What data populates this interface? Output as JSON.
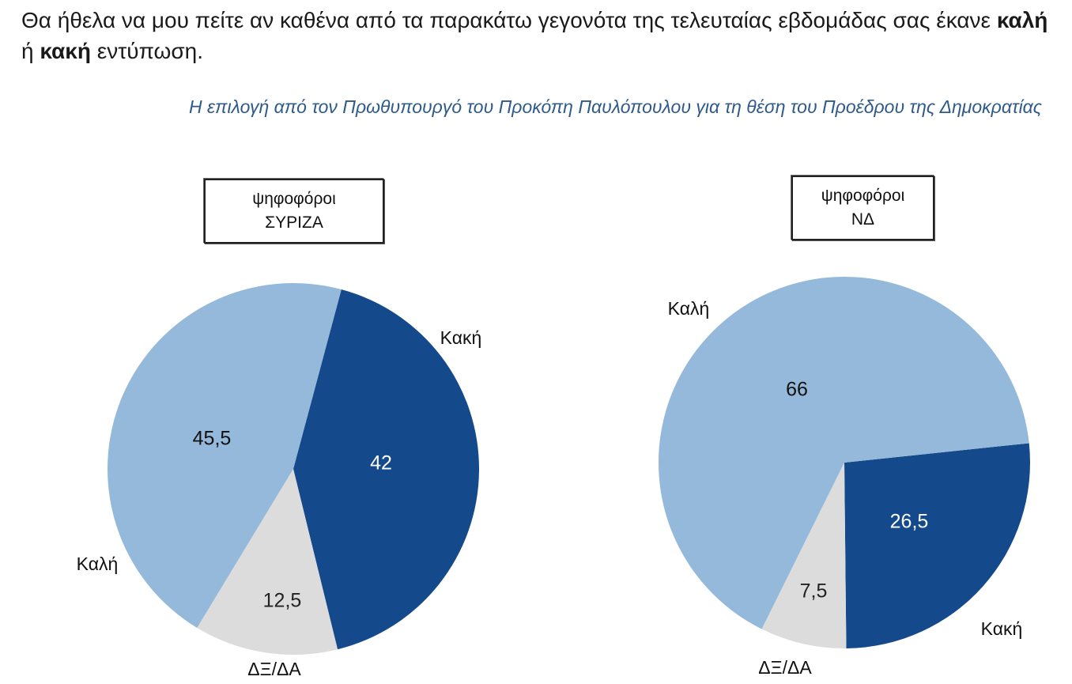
{
  "question": {
    "part1": "Θα ήθελα να μου πείτε αν καθένα από τα παρακάτω γεγονότα της τελευταίας εβδομάδας σας έκανε ",
    "bold1": "καλή",
    "part2": " ή ",
    "bold2": "κακή",
    "part3": " εντύπωση."
  },
  "subtitle": "Η επιλογή από τον Πρωθυπουργό του Προκόπη Παυλόπουλου για τη θέση του Προέδρου της Δημοκρατίας",
  "colors": {
    "good": "#95b9da",
    "bad": "#144a8b",
    "dk": "#dcdcdc"
  },
  "chart_data": [
    {
      "type": "pie",
      "title_line1": "ψηφοφόροι",
      "title_line2": "ΣΥΡΙΖΑ",
      "slices": [
        {
          "label": "Κακή",
          "value": 42,
          "value_text": "42",
          "color_key": "bad"
        },
        {
          "label": "ΔΞ/ΔΑ",
          "value": 12.5,
          "value_text": "12,5",
          "color_key": "dk"
        },
        {
          "label": "Καλή",
          "value": 45.5,
          "value_text": "45,5",
          "color_key": "good"
        }
      ]
    },
    {
      "type": "pie",
      "title_line1": "ψηφοφόροι",
      "title_line2": "ΝΔ",
      "slices": [
        {
          "label": "Κακή",
          "value": 26.5,
          "value_text": "26,5",
          "color_key": "bad"
        },
        {
          "label": "ΔΞ/ΔΑ",
          "value": 7.5,
          "value_text": "7,5",
          "color_key": "dk"
        },
        {
          "label": "Καλή",
          "value": 66,
          "value_text": "66",
          "color_key": "good"
        }
      ]
    }
  ]
}
